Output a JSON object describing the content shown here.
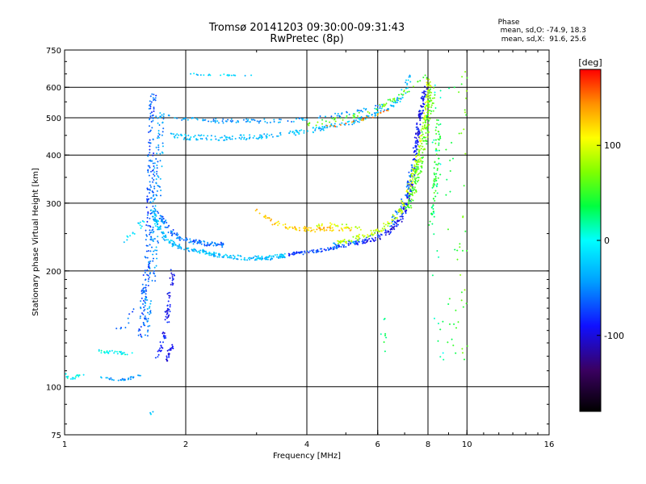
{
  "header": {
    "title_line1": "Tromsø 20141203 09:30:00-09:31:43",
    "title_line2": "RwPretec (8p)"
  },
  "phase_stats": {
    "heading": "Phase",
    "o_line": "mean, sd,O: -74.9, 18.3",
    "x_line": "mean, sd,X:  91.6, 25.6"
  },
  "chart_data": {
    "type": "scatter",
    "title": "Tromsø 20141203 09:30:00-09:31:43",
    "subtitle": "RwPretec (8p)",
    "xlabel": "Frequency [MHz]",
    "ylabel": "Stationary phase Virtual Height [km]",
    "xscale": "log",
    "yscale": "log",
    "xlim": [
      1,
      16
    ],
    "ylim": [
      75,
      750
    ],
    "xticks": [
      1,
      2,
      4,
      6,
      8,
      10,
      16
    ],
    "yticks": [
      75,
      100,
      200,
      300,
      400,
      500,
      600,
      750
    ],
    "grid_x": [
      2,
      4,
      6,
      8,
      10
    ],
    "grid_y": [
      100,
      200,
      300,
      400,
      500,
      600
    ],
    "colorbar": {
      "label": "[deg]",
      "range": [
        -180,
        180
      ],
      "ticks": [
        100,
        0,
        -100
      ],
      "colors": [
        "#000000",
        "#3a0060",
        "#1010ff",
        "#00a0ff",
        "#00ffff",
        "#00ff40",
        "#80ff00",
        "#ffff00",
        "#ff9000",
        "#ff0000"
      ]
    },
    "series": [
      {
        "trace": [
          [
            1.0,
            110
          ],
          [
            1.02,
            106
          ],
          [
            1.05,
            105
          ],
          [
            1.08,
            107
          ],
          [
            1.12,
            108
          ]
        ],
        "phase": 0,
        "spread": 2,
        "n": 18
      },
      {
        "trace": [
          [
            1.2,
            124
          ],
          [
            1.3,
            123
          ],
          [
            1.4,
            122
          ],
          [
            1.5,
            121
          ]
        ],
        "phase": -5,
        "spread": 2,
        "n": 30
      },
      {
        "trace": [
          [
            1.22,
            106
          ],
          [
            1.35,
            104
          ],
          [
            1.45,
            105
          ],
          [
            1.55,
            107
          ]
        ],
        "phase": -45,
        "spread": 1.5,
        "n": 30
      },
      {
        "trace": [
          [
            1.35,
            140
          ],
          [
            1.45,
            150
          ],
          [
            1.55,
            170
          ],
          [
            1.62,
            190
          ],
          [
            1.66,
            200
          ]
        ],
        "phase": -60,
        "spread": 4,
        "n": 20
      },
      {
        "trace": [
          [
            1.4,
            235
          ],
          [
            1.5,
            250
          ],
          [
            1.57,
            270
          ]
        ],
        "phase": -20,
        "spread": 4,
        "n": 16
      },
      {
        "trace": [
          [
            1.55,
            135
          ],
          [
            1.6,
            200
          ],
          [
            1.63,
            300
          ],
          [
            1.64,
            380
          ],
          [
            1.64,
            460
          ],
          [
            1.65,
            540
          ],
          [
            1.66,
            590
          ]
        ],
        "phase": -65,
        "spread": 4,
        "n": 190
      },
      {
        "trace": [
          [
            1.58,
            130
          ],
          [
            1.66,
            210
          ],
          [
            1.7,
            320
          ],
          [
            1.72,
            430
          ],
          [
            1.74,
            520
          ]
        ],
        "phase": -45,
        "spread": 5,
        "n": 130
      },
      {
        "trace": [
          [
            1.7,
            118
          ],
          [
            1.78,
            140
          ],
          [
            1.82,
            170
          ],
          [
            1.86,
            200
          ]
        ],
        "phase": -90,
        "spread": 3,
        "n": 70
      },
      {
        "trace": [
          [
            1.78,
            115
          ],
          [
            1.82,
            123
          ],
          [
            1.87,
            130
          ]
        ],
        "phase": -100,
        "spread": 2,
        "n": 24
      },
      {
        "trace": [
          [
            1.66,
            290
          ],
          [
            1.7,
            262
          ],
          [
            1.78,
            242
          ],
          [
            1.9,
            232
          ],
          [
            2.1,
            226
          ],
          [
            2.4,
            220
          ],
          [
            2.8,
            216
          ],
          [
            3.2,
            216
          ],
          [
            3.6,
            220
          ]
        ],
        "phase": -30,
        "spread": 2.5,
        "n": 260
      },
      {
        "trace": [
          [
            1.72,
            280
          ],
          [
            1.82,
            255
          ],
          [
            1.95,
            242
          ],
          [
            2.2,
            236
          ],
          [
            2.5,
            234
          ]
        ],
        "phase": -60,
        "spread": 3,
        "n": 120
      },
      {
        "trace": [
          [
            3.6,
            221
          ],
          [
            4.0,
            223
          ],
          [
            4.5,
            228
          ],
          [
            5.0,
            233
          ],
          [
            5.5,
            238
          ]
        ],
        "phase": -75,
        "spread": 2,
        "n": 90
      },
      {
        "trace": [
          [
            5.5,
            238
          ],
          [
            6.0,
            244
          ],
          [
            6.5,
            256
          ],
          [
            7.0,
            282
          ],
          [
            7.2,
            320
          ],
          [
            7.35,
            370
          ],
          [
            7.5,
            440
          ],
          [
            7.7,
            520
          ],
          [
            7.85,
            600
          ]
        ],
        "phase": -90,
        "spread": 3,
        "n": 240
      },
      {
        "trace": [
          [
            4.6,
            232
          ],
          [
            5.2,
            238
          ],
          [
            5.8,
            246
          ],
          [
            6.4,
            262
          ],
          [
            6.9,
            295
          ],
          [
            7.2,
            340
          ],
          [
            7.4,
            400
          ]
        ],
        "phase": -55,
        "spread": 3,
        "n": 80
      },
      {
        "trace": [
          [
            4.8,
            236
          ],
          [
            5.5,
            246
          ],
          [
            6.2,
            258
          ],
          [
            6.8,
            285
          ],
          [
            7.2,
            330
          ],
          [
            7.5,
            380
          ],
          [
            7.7,
            440
          ],
          [
            7.9,
            500
          ],
          [
            8.0,
            560
          ],
          [
            8.05,
            630
          ]
        ],
        "phase": 90,
        "spread": 3,
        "n": 220
      },
      {
        "trace": [
          [
            7.1,
            290
          ],
          [
            7.4,
            330
          ],
          [
            7.7,
            400
          ],
          [
            7.9,
            460
          ],
          [
            8.1,
            520
          ],
          [
            8.2,
            600
          ]
        ],
        "phase": 60,
        "spread": 4,
        "n": 160
      },
      {
        "trace": [
          [
            8.1,
            260
          ],
          [
            8.3,
            300
          ],
          [
            8.4,
            360
          ],
          [
            8.45,
            420
          ],
          [
            8.5,
            500
          ]
        ],
        "phase": 45,
        "spread": 3,
        "n": 70
      },
      {
        "trace": [
          [
            3.0,
            285
          ],
          [
            3.3,
            268
          ],
          [
            3.7,
            258
          ],
          [
            4.2,
            256
          ],
          [
            4.7,
            258
          ],
          [
            5.2,
            256
          ]
        ],
        "phase": 125,
        "spread": 3,
        "n": 90
      },
      {
        "trace": [
          [
            4.2,
            262
          ],
          [
            4.6,
            265
          ],
          [
            5.0,
            262
          ],
          [
            5.4,
            258
          ]
        ],
        "phase": 95,
        "spread": 2,
        "n": 25
      },
      {
        "trace": [
          [
            1.82,
            455
          ],
          [
            2.0,
            445
          ],
          [
            2.5,
            443
          ],
          [
            3.0,
            446
          ],
          [
            3.5,
            452
          ],
          [
            4.0,
            462
          ],
          [
            4.6,
            474
          ],
          [
            5.2,
            488
          ],
          [
            5.8,
            505
          ],
          [
            6.4,
            530
          ],
          [
            6.9,
            570
          ],
          [
            7.1,
            610
          ],
          [
            7.2,
            640
          ]
        ],
        "phase": -30,
        "spread": 3,
        "n": 230
      },
      {
        "trace": [
          [
            1.7,
            505
          ],
          [
            2.0,
            495
          ],
          [
            2.5,
            490
          ],
          [
            3.0,
            490
          ],
          [
            3.5,
            492
          ],
          [
            4.0,
            496
          ],
          [
            4.5,
            504
          ],
          [
            5.0,
            512
          ],
          [
            5.6,
            524
          ],
          [
            6.2,
            540
          ]
        ],
        "phase": -45,
        "spread": 2.5,
        "n": 120
      },
      {
        "trace": [
          [
            4.0,
            480
          ],
          [
            4.8,
            496
          ],
          [
            5.5,
            512
          ],
          [
            6.2,
            536
          ],
          [
            6.9,
            575
          ],
          [
            7.4,
            610
          ],
          [
            7.9,
            640
          ]
        ],
        "phase": 60,
        "spread": 3,
        "n": 60
      },
      {
        "trace": [
          [
            4.5,
            472
          ],
          [
            5.2,
            486
          ],
          [
            5.8,
            502
          ],
          [
            6.4,
            522
          ]
        ],
        "phase": 145,
        "spread": 2,
        "n": 22
      },
      {
        "trace": [
          [
            2.0,
            650
          ],
          [
            2.4,
            646
          ],
          [
            2.8,
            644
          ],
          [
            3.0,
            648
          ]
        ],
        "phase": -20,
        "spread": 1,
        "n": 22
      },
      {
        "trace": [
          [
            8.4,
            600
          ],
          [
            8.4,
            400
          ],
          [
            8.4,
            250
          ],
          [
            8.5,
            150
          ],
          [
            8.55,
            115
          ]
        ],
        "phase": 20,
        "spread": 6,
        "n": 30
      },
      {
        "trace": [
          [
            9.1,
            650
          ],
          [
            9.1,
            400
          ],
          [
            9.1,
            250
          ],
          [
            9.2,
            150
          ],
          [
            9.2,
            115
          ]
        ],
        "phase": 40,
        "spread": 6,
        "n": 22
      },
      {
        "trace": [
          [
            9.8,
            650
          ],
          [
            9.7,
            500
          ],
          [
            9.75,
            300
          ],
          [
            9.7,
            200
          ],
          [
            9.8,
            110
          ]
        ],
        "phase": 60,
        "spread": 7,
        "n": 35
      },
      {
        "trace": [
          [
            6.2,
            160
          ],
          [
            6.2,
            130
          ],
          [
            6.25,
            115
          ]
        ],
        "phase": 30,
        "spread": 4,
        "n": 8
      },
      {
        "trace": [
          [
            1.63,
            85
          ],
          [
            1.68,
            87
          ]
        ],
        "phase": -20,
        "spread": 1,
        "n": 4
      }
    ]
  }
}
